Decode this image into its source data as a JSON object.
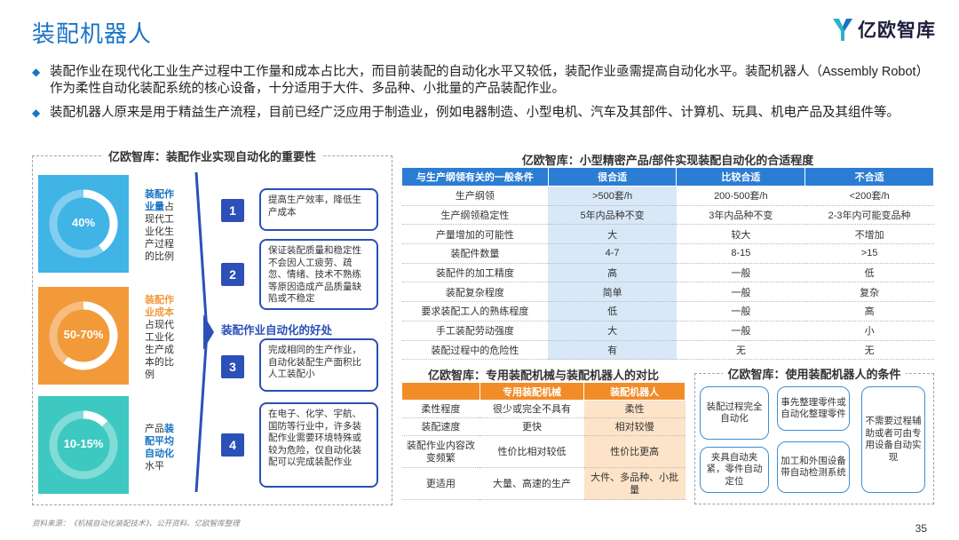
{
  "header": {
    "title": "装配机器人",
    "logo_text": "亿欧智库",
    "brand_color": "#1a73c6"
  },
  "bullets": [
    "装配作业在现代化工业生产过程中工作量和成本占比大，而目前装配的自动化水平又较低，装配作业亟需提高自动化水平。装配机器人（Assembly Robot）作为柔性自动化装配系统的核心设备，十分适用于大件、多品种、小批量的产品装配作业。",
    "装配机器人原来是用于精益生产流程，目前已经广泛应用于制造业，例如电器制造、小型电机、汽车及其部件、计算机、玩具、机电产品及其组件等。"
  ],
  "left_panel": {
    "title": "亿欧智库：装配作业实现自动化的重要性",
    "stats": [
      {
        "value": "40%",
        "fraction": 0.4,
        "color": "#3fb4e5",
        "highlight": "装配作业量",
        "rest": "占现代工业化生产过程的比例"
      },
      {
        "value": "50-70%",
        "fraction": 0.6,
        "color": "#f29a3a",
        "highlight": "装配作业成本",
        "rest": "占现代工业化生产成本的比例"
      },
      {
        "value": "10-15%",
        "fraction": 0.125,
        "color": "#3ec8c2",
        "pre": "产品",
        "highlight": "装配平均自动化",
        "rest": "水平"
      }
    ],
    "benefit_label": "装配作业自动化的好处",
    "reasons": [
      {
        "num": "1",
        "text": "提高生产效率，降低生产成本"
      },
      {
        "num": "2",
        "text": "保证装配质量和稳定性不会因人工疲劳、疏忽、情绪、技术不熟练等原因造成产品质量缺陷或不稳定"
      },
      {
        "num": "3",
        "text": "完成相同的生产作业，自动化装配生产面积比人工装配小"
      },
      {
        "num": "4",
        "text": "在电子、化学、宇航、国防等行业中，许多装配作业需要环境特殊或较为危险，仅自动化装配可以完成装配作业"
      }
    ]
  },
  "table1": {
    "title": "亿欧智库：小型精密产品/部件实现装配自动化的合适程度",
    "headers": [
      "与生产纲领有关的一般条件",
      "很合适",
      "比较合适",
      "不合适"
    ],
    "rows": [
      [
        "生产纲领",
        ">500套/h",
        "200-500套/h",
        "<200套/h"
      ],
      [
        "生产纲领稳定性",
        "5年内品种不变",
        "3年内品种不变",
        "2-3年内可能变品种"
      ],
      [
        "产量增加的可能性",
        "大",
        "较大",
        "不增加"
      ],
      [
        "装配件数量",
        "4-7",
        "8-15",
        ">15"
      ],
      [
        "装配件的加工精度",
        "高",
        "一般",
        "低"
      ],
      [
        "装配复杂程度",
        "简单",
        "一般",
        "复杂"
      ],
      [
        "要求装配工人的熟练程度",
        "低",
        "一般",
        "高"
      ],
      [
        "手工装配劳动强度",
        "大",
        "一般",
        "小"
      ],
      [
        "装配过程中的危险性",
        "有",
        "无",
        "无"
      ]
    ]
  },
  "table2": {
    "title": "亿欧智库：专用装配机械与装配机器人的对比",
    "headers": [
      "",
      "专用装配机械",
      "装配机器人"
    ],
    "rows": [
      [
        "柔性程度",
        "很少或完全不具有",
        "柔性"
      ],
      [
        "装配速度",
        "更快",
        "相对较慢"
      ],
      [
        "装配作业内容改变频繁",
        "性价比相对较低",
        "性价比更高"
      ],
      [
        "更适用",
        "大量、高速的生产",
        "大件、多品种、小批量"
      ]
    ]
  },
  "conditions": {
    "title": "亿欧智库：使用装配机器人的条件",
    "items": [
      "装配过程完全自动化",
      "事先整理零件或自动化整理零件",
      "不需要过程辅助或者可由专用设备自动实现",
      "夹具自动夹紧，零件自动定位",
      "加工和外围设备带自动检测系统"
    ]
  },
  "footer": {
    "source": "资料来源：《机械自动化装配技术》、公开资料、亿欧智库整理",
    "page": "35"
  }
}
